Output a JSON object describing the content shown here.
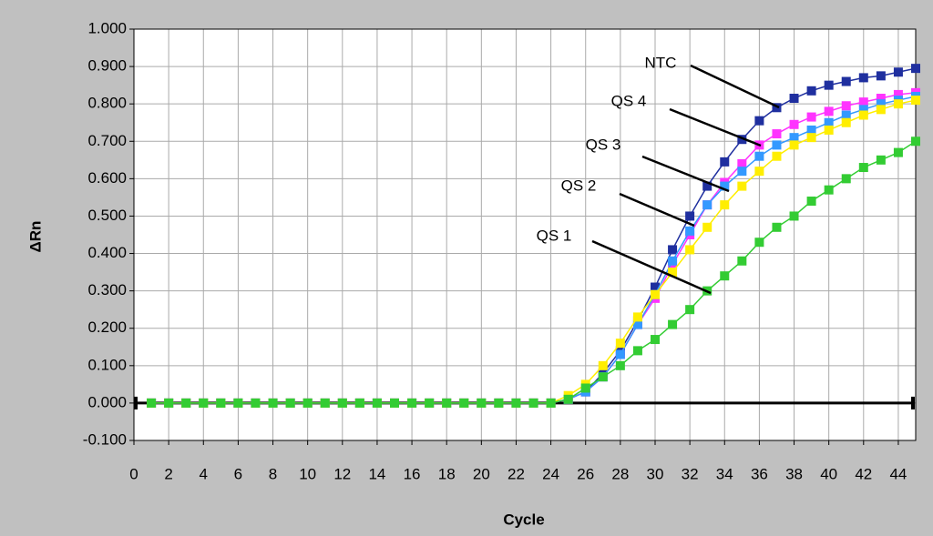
{
  "chart_data": {
    "type": "line",
    "x_label": "Cycle",
    "y_label": "ΔRn",
    "x": [
      1,
      2,
      3,
      4,
      5,
      6,
      7,
      8,
      9,
      10,
      11,
      12,
      13,
      14,
      15,
      16,
      17,
      18,
      19,
      20,
      21,
      22,
      23,
      24,
      25,
      26,
      27,
      28,
      29,
      30,
      31,
      32,
      33,
      34,
      35,
      36,
      37,
      38,
      39,
      40,
      41,
      42,
      43,
      44,
      45
    ],
    "series": [
      {
        "name": "NTC",
        "color": "#1f2f9f",
        "values": [
          0,
          0,
          0,
          0,
          0,
          0,
          0,
          0,
          0,
          0,
          0,
          0,
          0,
          0,
          0,
          0,
          0,
          0,
          0,
          0,
          0,
          0,
          0,
          0,
          0.01,
          0.03,
          0.08,
          0.14,
          0.22,
          0.31,
          0.41,
          0.5,
          0.58,
          0.645,
          0.705,
          0.755,
          0.79,
          0.815,
          0.835,
          0.85,
          0.86,
          0.87,
          0.875,
          0.885,
          0.895
        ]
      },
      {
        "name": "QS 4",
        "color": "#ff33ff",
        "values": [
          0,
          0,
          0,
          0,
          0,
          0,
          0,
          0,
          0,
          0,
          0,
          0,
          0,
          0,
          0,
          0,
          0,
          0,
          0,
          0,
          0,
          0,
          0,
          0,
          0.01,
          0.03,
          0.07,
          0.13,
          0.21,
          0.28,
          0.37,
          0.45,
          0.53,
          0.59,
          0.64,
          0.69,
          0.72,
          0.745,
          0.765,
          0.78,
          0.795,
          0.805,
          0.815,
          0.825,
          0.83
        ]
      },
      {
        "name": "QS 3",
        "color": "#3399ff",
        "values": [
          0,
          0,
          0,
          0,
          0,
          0,
          0,
          0,
          0,
          0,
          0,
          0,
          0,
          0,
          0,
          0,
          0,
          0,
          0,
          0,
          0,
          0,
          0,
          0,
          0.01,
          0.03,
          0.07,
          0.13,
          0.21,
          0.29,
          0.38,
          0.46,
          0.53,
          0.58,
          0.62,
          0.66,
          0.69,
          0.71,
          0.73,
          0.75,
          0.77,
          0.785,
          0.8,
          0.81,
          0.82
        ]
      },
      {
        "name": "QS 2",
        "color": "#ffee00",
        "values": [
          0,
          0,
          0,
          0,
          0,
          0,
          0,
          0,
          0,
          0,
          0,
          0,
          0,
          0,
          0,
          0,
          0,
          0,
          0,
          0,
          0,
          0,
          0,
          0,
          0.02,
          0.05,
          0.1,
          0.16,
          0.23,
          0.29,
          0.35,
          0.41,
          0.47,
          0.53,
          0.58,
          0.62,
          0.66,
          0.69,
          0.71,
          0.73,
          0.75,
          0.77,
          0.785,
          0.8,
          0.81
        ]
      },
      {
        "name": "QS 1",
        "color": "#33cc33",
        "values": [
          0,
          0,
          0,
          0,
          0,
          0,
          0,
          0,
          0,
          0,
          0,
          0,
          0,
          0,
          0,
          0,
          0,
          0,
          0,
          0,
          0,
          0,
          0,
          0,
          0.01,
          0.04,
          0.07,
          0.1,
          0.14,
          0.17,
          0.21,
          0.25,
          0.3,
          0.34,
          0.38,
          0.43,
          0.47,
          0.5,
          0.54,
          0.57,
          0.6,
          0.63,
          0.65,
          0.67,
          0.7
        ]
      }
    ],
    "threshold": 0,
    "xlim": [
      0,
      45
    ],
    "ylim": [
      -0.1,
      1.0
    ],
    "xticks": [
      0,
      2,
      4,
      6,
      8,
      10,
      12,
      14,
      16,
      18,
      20,
      22,
      24,
      26,
      28,
      30,
      32,
      34,
      36,
      38,
      40,
      42,
      44
    ],
    "yticks": [
      {
        "value": -0.1,
        "label": "-0.100"
      },
      {
        "value": 0,
        "label": "0.000"
      },
      {
        "value": 0.1,
        "label": "0.100"
      },
      {
        "value": 0.2,
        "label": "0.200"
      },
      {
        "value": 0.3,
        "label": "0.300"
      },
      {
        "value": 0.4,
        "label": "0.400"
      },
      {
        "value": 0.5,
        "label": "0.500"
      },
      {
        "value": 0.6,
        "label": "0.600"
      },
      {
        "value": 0.7,
        "label": "0.700"
      },
      {
        "value": 0.8,
        "label": "0.800"
      },
      {
        "value": 0.9,
        "label": "0.900"
      },
      {
        "value": 1.0,
        "label": "1.000"
      }
    ],
    "grid": true
  }
}
